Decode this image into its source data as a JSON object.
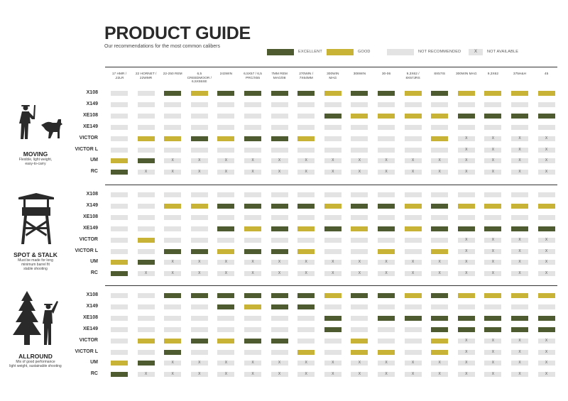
{
  "title": "PRODUCT GUIDE",
  "subtitle": "Our recommendations for the most common calibers",
  "legend": [
    {
      "label": "EXCELLENT",
      "color": "#4e5a30",
      "mark": ""
    },
    {
      "label": "GOOD",
      "color": "#c9b337",
      "mark": ""
    },
    {
      "label": "NOT RECOMMENDED",
      "color": "#e3e3e3",
      "mark": ""
    },
    {
      "label": "NOT AVAILABLE",
      "color": "#e3e3e3",
      "mark": "X"
    }
  ],
  "columns": [
    {
      "l1": "17 HMR /",
      "l2": ".22LR"
    },
    {
      "l1": "22 HORNET /",
      "l2": "22WMR"
    },
    {
      "l1": "22-250 REM",
      "l2": ""
    },
    {
      "l1": "6,5 CREEDMOOR /",
      "l2": "6,5X55SE"
    },
    {
      "l1": "243WIN",
      "l2": ""
    },
    {
      "l1": "6,5X57 / 6,5",
      "l2": "PRC/X55"
    },
    {
      "l1": "7MM REM",
      "l2": "MAG/08"
    },
    {
      "l1": "270WIN /",
      "l2": "7X64MM"
    },
    {
      "l1": "300WIN",
      "l2": "MAG"
    },
    {
      "l1": "308WIN",
      "l2": ""
    },
    {
      "l1": "30-06",
      "l2": ""
    },
    {
      "l1": "9,3X62 /",
      "l2": "8X57JRS"
    },
    {
      "l1": "8X57IS",
      "l2": ""
    },
    {
      "l1": "300WIN MAG",
      "l2": ""
    },
    {
      "l1": "9,3X62",
      "l2": ""
    },
    {
      "l1": "375H&H",
      "l2": ""
    },
    {
      "l1": "45",
      "l2": ""
    }
  ],
  "sections": [
    {
      "name": "MOVING",
      "desc": [
        "Flexible, light weight,",
        "easy-to-carry"
      ],
      "icon": "hunter-with-dog-icon",
      "rows": [
        {
          "label": "X108",
          "cells": "NNEGEEEEGEEGEGGGG"
        },
        {
          "label": "X149",
          "cells": "NNNNNNNNNNNNNNNNN"
        },
        {
          "label": "XE108",
          "cells": "NNNNNNNNEGGGGEEEE"
        },
        {
          "label": "XE149",
          "cells": "NNNNNNNNNNNNNNNNN"
        },
        {
          "label": "VICTOR",
          "cells": "NGGEGEEGNNNNGXXXX"
        },
        {
          "label": "VICTOR L",
          "cells": "NNNNNNNNNNNNNXXXX"
        },
        {
          "label": "UM",
          "cells": "GEXXXXXXXXXXXXXXX"
        },
        {
          "label": "RC",
          "cells": "EXXXXXXXXXXXXXXXX"
        }
      ]
    },
    {
      "name": "SPOT & STALK",
      "desc": [
        "Must be made for long",
        "minimum barrel fit",
        "stable shooting"
      ],
      "icon": "hunting-tower-icon",
      "rows": [
        {
          "label": "X108",
          "cells": "NNNNNNNNNNNNNNNNN"
        },
        {
          "label": "X149",
          "cells": "NNGGEEEEGEEGEGGGG"
        },
        {
          "label": "XE108",
          "cells": "NNNNNNNNNNNNNNNNN"
        },
        {
          "label": "XE149",
          "cells": "NNNNEGEGEGEGEEEEE"
        },
        {
          "label": "VICTOR",
          "cells": "NGNNNNNNNNNNNXXXX"
        },
        {
          "label": "VICTOR L",
          "cells": "NNEEGEEGNNGNGXXXX"
        },
        {
          "label": "UM",
          "cells": "GEXXXXXXXXXXXXXXX"
        },
        {
          "label": "RC",
          "cells": "EXXXXXXXXXXXXXXXX"
        }
      ]
    },
    {
      "name": "ALLROUND",
      "desc": [
        "Mix of good performance",
        "light weight, sustainable shooting"
      ],
      "icon": "hunter-by-tree-icon",
      "rows": [
        {
          "label": "X108",
          "cells": "NNEEEEEEGEEGEGGGG"
        },
        {
          "label": "X149",
          "cells": "NNNNEGEENNNNNNNNN"
        },
        {
          "label": "XE108",
          "cells": "NNNNNNNNENEEEEEEE"
        },
        {
          "label": "XE149",
          "cells": "NNNNNNNNENNNEEEEE"
        },
        {
          "label": "VICTOR",
          "cells": "NGGEGEENNGNNGXXXX"
        },
        {
          "label": "VICTOR L",
          "cells": "NNENNNNGNGGNGXXXX"
        },
        {
          "label": "UM",
          "cells": "GEXXXXXXXXXXXXXXX"
        },
        {
          "label": "RC",
          "cells": "EXXXXXXXXXXXXXXXX"
        }
      ]
    }
  ]
}
